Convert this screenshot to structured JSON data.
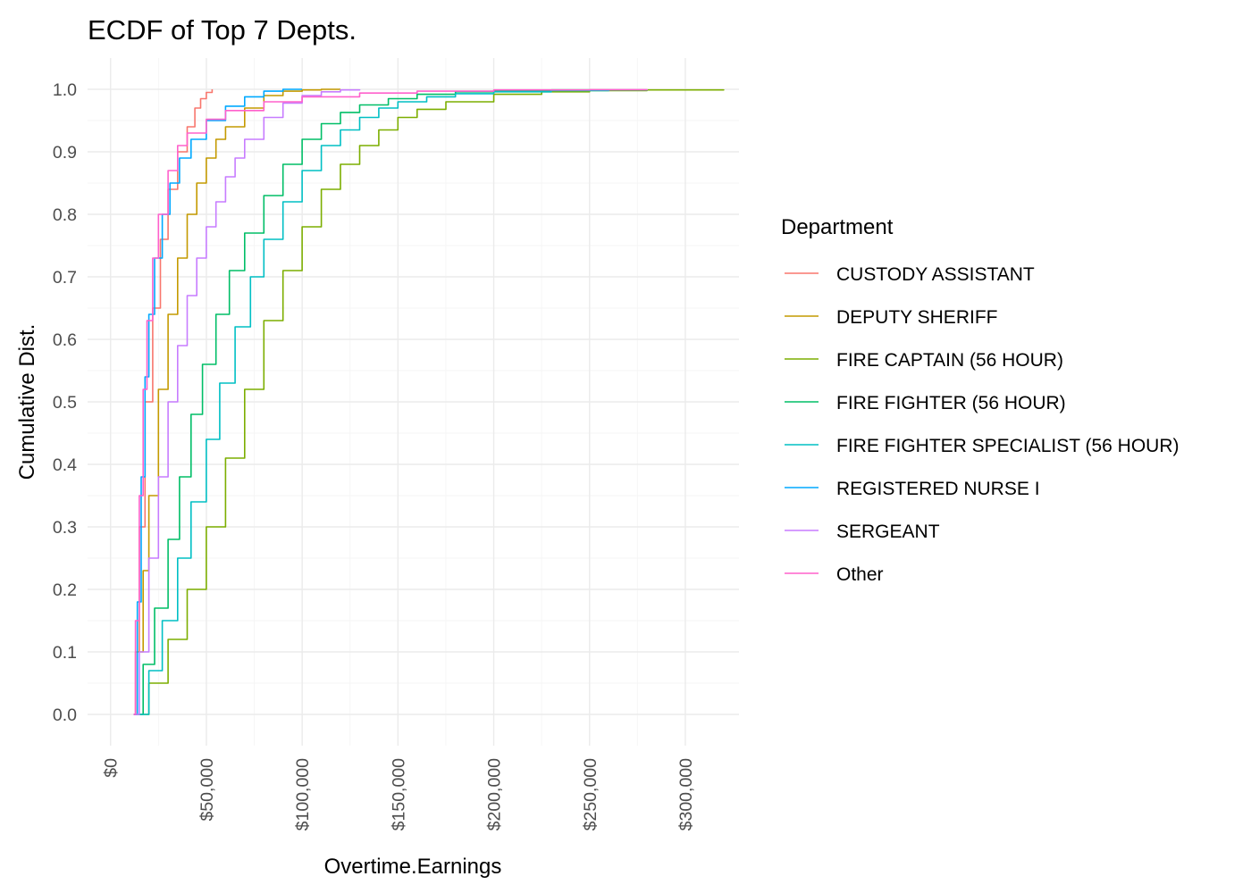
{
  "chart_data": {
    "type": "line",
    "title": "ECDF of Top 7 Depts.",
    "xlabel": "Overtime.Earnings",
    "ylabel": "Cumulative Dist.",
    "xlim": [
      -12000,
      328000
    ],
    "ylim": [
      -0.05,
      1.05
    ],
    "x_ticks": [
      0,
      50000,
      100000,
      150000,
      200000,
      250000,
      300000
    ],
    "x_tick_labels": [
      "$0",
      "$50,000",
      "$100,000",
      "$150,000",
      "$200,000",
      "$250,000",
      "$300,000"
    ],
    "y_ticks": [
      0.0,
      0.1,
      0.2,
      0.3,
      0.4,
      0.5,
      0.6,
      0.7,
      0.8,
      0.9,
      1.0
    ],
    "y_tick_labels": [
      "0.0",
      "0.1",
      "0.2",
      "0.3",
      "0.4",
      "0.5",
      "0.6",
      "0.7",
      "0.8",
      "0.9",
      "1.0"
    ],
    "grid": true,
    "legend_title": "Department",
    "legend_position": "right",
    "series": [
      {
        "name": "CUSTODY ASSISTANT",
        "color": "#F8766D",
        "x": [
          12000,
          13000,
          15000,
          18000,
          22000,
          26000,
          30000,
          35000,
          40000,
          44000,
          47000,
          50000,
          53000
        ],
        "y": [
          0.0,
          0.1,
          0.3,
          0.5,
          0.65,
          0.76,
          0.84,
          0.9,
          0.94,
          0.97,
          0.985,
          0.995,
          1.0
        ]
      },
      {
        "name": "DEPUTY SHERIFF",
        "color": "#C49A00",
        "x": [
          12000,
          14000,
          17000,
          20000,
          25000,
          30000,
          35000,
          40000,
          45000,
          50000,
          55000,
          60000,
          70000,
          80000,
          90000,
          100000,
          110000,
          120000
        ],
        "y": [
          0.0,
          0.1,
          0.23,
          0.35,
          0.52,
          0.64,
          0.73,
          0.8,
          0.85,
          0.89,
          0.92,
          0.94,
          0.97,
          0.99,
          0.997,
          0.999,
          1.0,
          1.0
        ]
      },
      {
        "name": "FIRE CAPTAIN (56 HOUR)",
        "color": "#7CAE00",
        "x": [
          12000,
          20000,
          30000,
          40000,
          50000,
          60000,
          70000,
          80000,
          90000,
          100000,
          110000,
          120000,
          130000,
          140000,
          150000,
          160000,
          175000,
          200000,
          225000,
          250000,
          280000,
          320000
        ],
        "y": [
          0.0,
          0.05,
          0.12,
          0.2,
          0.3,
          0.41,
          0.52,
          0.63,
          0.71,
          0.78,
          0.84,
          0.88,
          0.91,
          0.935,
          0.955,
          0.968,
          0.98,
          0.992,
          0.996,
          0.998,
          0.999,
          1.0
        ]
      },
      {
        "name": "FIRE FIGHTER (56 HOUR)",
        "color": "#00BE67",
        "x": [
          12000,
          17000,
          23000,
          30000,
          36000,
          42000,
          48000,
          55000,
          62000,
          70000,
          80000,
          90000,
          100000,
          110000,
          120000,
          130000,
          145000,
          160000,
          180000,
          200000,
          230000,
          260000
        ],
        "y": [
          0.0,
          0.08,
          0.17,
          0.28,
          0.38,
          0.48,
          0.56,
          0.64,
          0.71,
          0.77,
          0.83,
          0.88,
          0.92,
          0.945,
          0.963,
          0.975,
          0.985,
          0.992,
          0.996,
          0.998,
          0.999,
          1.0
        ]
      },
      {
        "name": "FIRE FIGHTER SPECIALIST (56 HOUR)",
        "color": "#00BFC4",
        "x": [
          12000,
          20000,
          27000,
          35000,
          42000,
          50000,
          57000,
          65000,
          73000,
          80000,
          90000,
          100000,
          110000,
          120000,
          130000,
          140000,
          150000,
          165000,
          180000,
          200000,
          230000,
          260000,
          280000
        ],
        "y": [
          0.0,
          0.07,
          0.15,
          0.25,
          0.34,
          0.44,
          0.53,
          0.62,
          0.7,
          0.76,
          0.82,
          0.87,
          0.91,
          0.935,
          0.955,
          0.97,
          0.98,
          0.988,
          0.993,
          0.996,
          0.998,
          0.999,
          1.0
        ]
      },
      {
        "name": "REGISTERED NURSE I",
        "color": "#00A9FF",
        "x": [
          12000,
          14000,
          16000,
          18000,
          20000,
          23000,
          27000,
          31000,
          36000,
          42000,
          50000,
          60000,
          70000,
          80000,
          90000,
          100000
        ],
        "y": [
          0.0,
          0.18,
          0.38,
          0.54,
          0.64,
          0.73,
          0.8,
          0.85,
          0.89,
          0.92,
          0.95,
          0.973,
          0.988,
          0.997,
          1.0,
          1.0
        ]
      },
      {
        "name": "SERGEANT",
        "color": "#C77CFF",
        "x": [
          12000,
          15000,
          20000,
          25000,
          30000,
          35000,
          40000,
          45000,
          50000,
          55000,
          60000,
          65000,
          70000,
          80000,
          90000,
          100000,
          110000,
          120000,
          130000
        ],
        "y": [
          0.0,
          0.1,
          0.25,
          0.38,
          0.5,
          0.59,
          0.67,
          0.73,
          0.78,
          0.82,
          0.86,
          0.89,
          0.92,
          0.955,
          0.978,
          0.99,
          0.996,
          0.999,
          1.0
        ]
      },
      {
        "name": "Other",
        "color": "#FF61CC",
        "x": [
          12000,
          13000,
          15000,
          17000,
          19000,
          22000,
          25000,
          30000,
          35000,
          40000,
          50000,
          60000,
          80000,
          100000,
          130000,
          160000,
          200000,
          250000,
          280000
        ],
        "y": [
          0.0,
          0.15,
          0.35,
          0.52,
          0.63,
          0.73,
          0.8,
          0.87,
          0.91,
          0.93,
          0.952,
          0.966,
          0.98,
          0.988,
          0.994,
          0.997,
          0.999,
          0.9995,
          1.0
        ]
      }
    ]
  }
}
